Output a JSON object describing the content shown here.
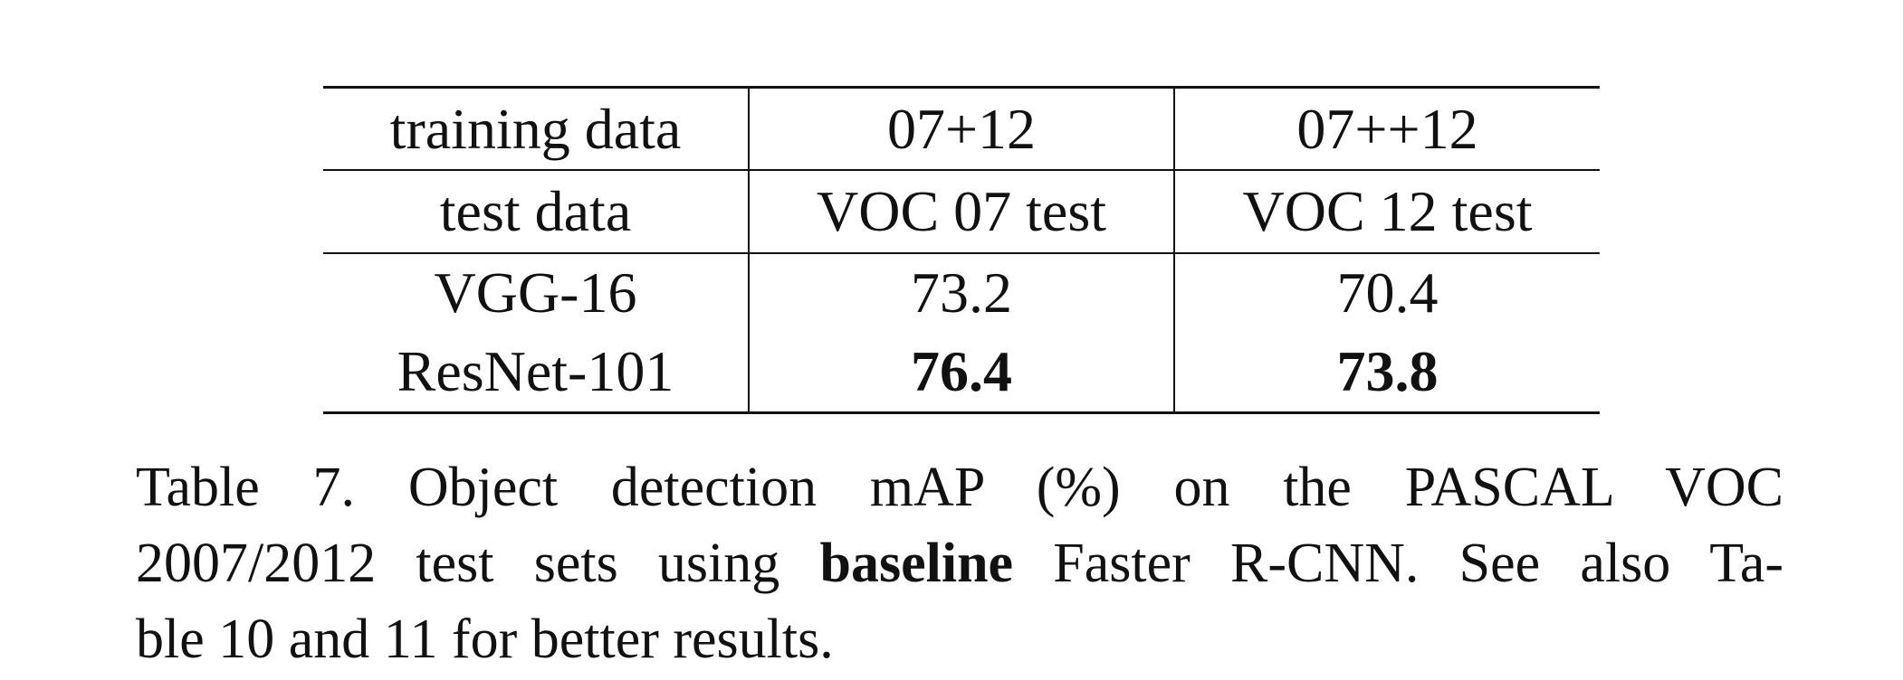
{
  "table": {
    "header": {
      "training": [
        "training data",
        "07+12",
        "07++12"
      ],
      "test": [
        "test data",
        "VOC 07 test",
        "VOC 12 test"
      ]
    },
    "rows": [
      {
        "model": "VGG-16",
        "voc07": "73.2",
        "voc12": "70.4"
      },
      {
        "model": "ResNet-101",
        "voc07": "76.4",
        "voc12": "73.8"
      }
    ]
  },
  "caption": {
    "line1": "Table 7. Object detection mAP (%) on the PASCAL VOC",
    "line2_before": "2007/2012 test sets using ",
    "line2_bold": "baseline",
    "line2_after": " Faster R-CNN. See also Ta-",
    "line3": "ble 10 and 11 for better results."
  }
}
